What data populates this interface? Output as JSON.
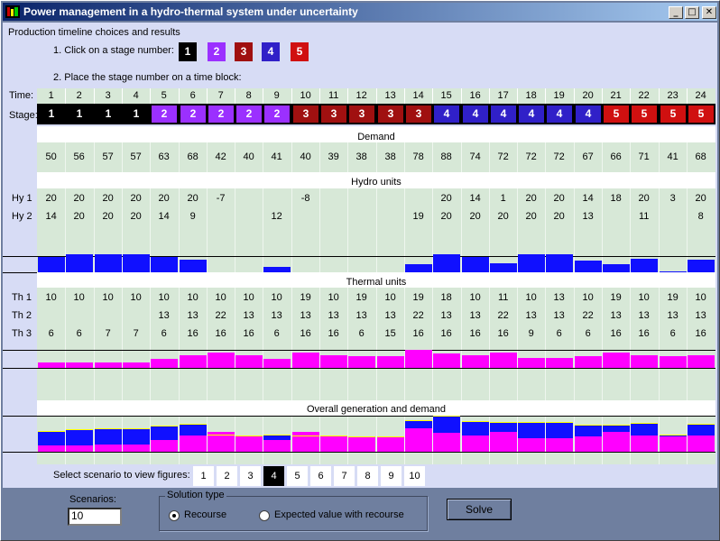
{
  "window": {
    "title": "Power management in a hydro-thermal system under uncertainty",
    "minimize_icon": "minimize-icon",
    "maximize_icon": "maximize-icon",
    "close_icon": "close-icon"
  },
  "header": {
    "section_title": "Production timeline choices and results",
    "step1": "1. Click on a stage number:",
    "step2": "2. Place the stage number on a time block:"
  },
  "stage_picker": [
    {
      "label": "1",
      "color": "#000000"
    },
    {
      "label": "2",
      "color": "#9b30ff"
    },
    {
      "label": "3",
      "color": "#a01010"
    },
    {
      "label": "4",
      "color": "#3020c8"
    },
    {
      "label": "5",
      "color": "#d01010"
    }
  ],
  "labels": {
    "time": "Time:",
    "stage": "Stage:",
    "demand": "Demand",
    "hydro": "Hydro units",
    "hy1": "Hy 1",
    "hy2": "Hy 2",
    "thermal": "Thermal units",
    "th1": "Th 1",
    "th2": "Th 2",
    "th3": "Th 3",
    "overall": "Overall generation and demand",
    "select_scenario": "Select scenario to view figures:"
  },
  "time": [
    "1",
    "2",
    "3",
    "4",
    "5",
    "6",
    "7",
    "8",
    "9",
    "10",
    "11",
    "12",
    "13",
    "14",
    "15",
    "16",
    "17",
    "18",
    "19",
    "20",
    "21",
    "22",
    "23",
    "24"
  ],
  "stages": [
    "1",
    "1",
    "1",
    "1",
    "2",
    "2",
    "2",
    "2",
    "2",
    "3",
    "3",
    "3",
    "3",
    "3",
    "4",
    "4",
    "4",
    "4",
    "4",
    "4",
    "5",
    "5",
    "5",
    "5"
  ],
  "demand": [
    "50",
    "56",
    "57",
    "57",
    "63",
    "68",
    "42",
    "40",
    "41",
    "40",
    "39",
    "38",
    "38",
    "78",
    "88",
    "74",
    "72",
    "72",
    "72",
    "67",
    "66",
    "71",
    "41",
    "68"
  ],
  "hy1": [
    "20",
    "20",
    "20",
    "20",
    "20",
    "20",
    "-7",
    "",
    "",
    "-8",
    "",
    "",
    "",
    "",
    "20",
    "14",
    "1",
    "20",
    "20",
    "14",
    "18",
    "20",
    "3",
    "20"
  ],
  "hy2": [
    "14",
    "20",
    "20",
    "20",
    "14",
    "9",
    "",
    "",
    "12",
    "",
    "",
    "",
    "",
    "19",
    "20",
    "20",
    "20",
    "20",
    "20",
    "13",
    "",
    "11",
    "",
    "8"
  ],
  "th1": [
    "10",
    "10",
    "10",
    "10",
    "10",
    "10",
    "10",
    "10",
    "10",
    "19",
    "10",
    "19",
    "10",
    "19",
    "18",
    "10",
    "11",
    "10",
    "13",
    "10",
    "19",
    "10",
    "19",
    "10"
  ],
  "th2": [
    "",
    "",
    "",
    "",
    "13",
    "13",
    "22",
    "13",
    "13",
    "13",
    "13",
    "13",
    "13",
    "22",
    "13",
    "13",
    "22",
    "13",
    "13",
    "22",
    "13",
    "13",
    "13",
    "13"
  ],
  "th3": [
    "6",
    "6",
    "7",
    "7",
    "6",
    "16",
    "16",
    "16",
    "6",
    "16",
    "16",
    "6",
    "15",
    "16",
    "16",
    "16",
    "16",
    "9",
    "6",
    "6",
    "16",
    "16",
    "6",
    "16"
  ],
  "chart_data": [
    {
      "type": "bar",
      "title": "Hydro units",
      "categories": [
        "1",
        "2",
        "3",
        "4",
        "5",
        "6",
        "7",
        "8",
        "9",
        "10",
        "11",
        "12",
        "13",
        "14",
        "15",
        "16",
        "17",
        "18",
        "19",
        "20",
        "21",
        "22",
        "23",
        "24"
      ],
      "series": [
        {
          "values": [
            34,
            40,
            40,
            40,
            34,
            29,
            -7,
            0,
            12,
            -8,
            0,
            0,
            0,
            19,
            40,
            34,
            21,
            40,
            40,
            27,
            18,
            31,
            3,
            28
          ]
        }
      ]
    },
    {
      "type": "bar",
      "title": "Thermal units",
      "categories": [
        "1",
        "2",
        "3",
        "4",
        "5",
        "6",
        "7",
        "8",
        "9",
        "10",
        "11",
        "12",
        "13",
        "14",
        "15",
        "16",
        "17",
        "18",
        "19",
        "20",
        "21",
        "22",
        "23",
        "24"
      ],
      "series": [
        {
          "values": [
            16,
            16,
            17,
            17,
            29,
            39,
            48,
            39,
            29,
            48,
            39,
            38,
            38,
            57,
            47,
            39,
            49,
            32,
            32,
            38,
            48,
            39,
            38,
            39
          ]
        }
      ]
    },
    {
      "type": "bar",
      "title": "Overall generation and demand",
      "categories": [
        "1",
        "2",
        "3",
        "4",
        "5",
        "6",
        "7",
        "8",
        "9",
        "10",
        "11",
        "12",
        "13",
        "14",
        "15",
        "16",
        "17",
        "18",
        "19",
        "20",
        "21",
        "22",
        "23",
        "24"
      ],
      "series": [
        {
          "values": [
            16,
            16,
            17,
            17,
            29,
            39,
            48,
            39,
            29,
            48,
            39,
            38,
            38,
            57,
            47,
            39,
            49,
            32,
            32,
            38,
            48,
            39,
            38,
            39
          ]
        },
        {
          "values": [
            34,
            40,
            40,
            40,
            34,
            29,
            -7,
            0,
            12,
            -8,
            0,
            0,
            0,
            19,
            40,
            34,
            21,
            40,
            40,
            27,
            18,
            31,
            3,
            28
          ]
        }
      ],
      "demand": [
        50,
        56,
        57,
        57,
        63,
        68,
        42,
        40,
        41,
        40,
        39,
        38,
        38,
        78,
        88,
        74,
        72,
        72,
        72,
        67,
        66,
        71,
        41,
        68
      ]
    }
  ],
  "colors": {
    "stage1": "#000000",
    "stage2": "#9b30ff",
    "stage3": "#a01010",
    "stage4": "#3020c8",
    "stage5": "#d01010",
    "hydro": "#1010ff",
    "thermal": "#ff00ff",
    "panel_green": "#d7e8d7",
    "panel_lavender": "#d7dcf5"
  },
  "scenarios": [
    "1",
    "2",
    "3",
    "4",
    "5",
    "6",
    "7",
    "8",
    "9",
    "10"
  ],
  "selected_scenario": "4",
  "bottom": {
    "scenarios_label": "Scenarios:",
    "scenarios_value": "10",
    "solution_type_label": "Solution type",
    "radio_recourse": "Recourse",
    "radio_expected": "Expected value with recourse",
    "solve_label": "Solve"
  }
}
